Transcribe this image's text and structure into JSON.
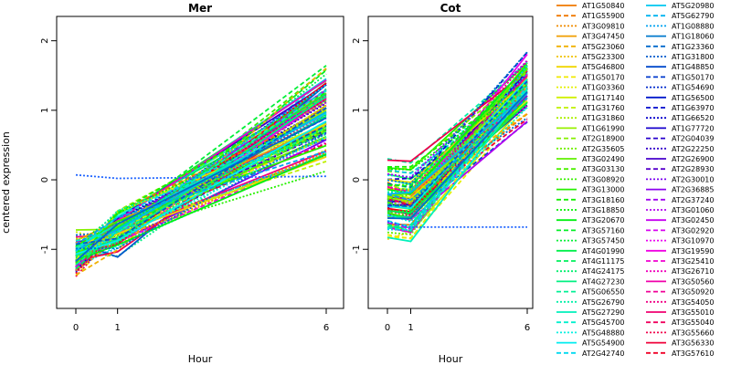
{
  "chart_data": {
    "type": "line",
    "ylabel": "centered expression",
    "xlabel": "Hour",
    "x": [
      0,
      1,
      6
    ],
    "xticks": [
      "0",
      "1",
      "6"
    ],
    "yticks": [
      -1,
      0,
      1,
      2
    ],
    "ylim": [
      -1.85,
      2.35
    ],
    "grid": false,
    "legend_placement": "right",
    "panels": [
      {
        "name": "Mer",
        "title": "Mer",
        "note": "≈100 gene profiles; most rise from ≈-1.1 at 0 h to ≈0.9 at 6 h; one flat dotted blue profile near 0"
      },
      {
        "name": "Cot",
        "title": "Cot",
        "note": "profiles spread -0.9 to 0.8 at 0-1 h then rise steeply to ≈1.4 at 6 h; one flat dotted blue profile near -0.7"
      }
    ],
    "legend": [
      "AT1G50840",
      "AT1G55900",
      "AT3G09810",
      "AT3G47450",
      "AT5G23060",
      "AT5G23300",
      "AT5G46800",
      "AT1G50170",
      "AT1G03360",
      "AT1G17140",
      "AT1G31760",
      "AT1G31860",
      "AT1G61990",
      "AT2G18900",
      "AT2G35605",
      "AT3G02490",
      "AT3G03130",
      "AT3G08920",
      "AT3G13000",
      "AT3G18160",
      "AT3G18850",
      "AT3G20670",
      "AT3G57160",
      "AT3G57450",
      "AT4G01990",
      "AT4G11175",
      "AT4G24175",
      "AT4G27230",
      "AT5G06550",
      "AT5G26790",
      "AT5G27290",
      "AT5G45700",
      "AT5G48880",
      "AT5G54900",
      "AT2G42740",
      "AT5G20980",
      "AT5G62790",
      "AT1G08880",
      "AT1G18060",
      "AT1G23360",
      "AT1G31800",
      "AT1G48850",
      "AT1G50170",
      "AT1G54690",
      "AT1G56500",
      "AT1G63970",
      "AT1G66520",
      "AT1G77720",
      "AT2G04039",
      "AT2G22250",
      "AT2G26900",
      "AT2G28930",
      "AT2G30010",
      "AT2G36885",
      "AT2G37240",
      "AT3G01060",
      "AT3G02450",
      "AT3G02920",
      "AT3G10970",
      "AT3G19590",
      "AT3G25410",
      "AT3G26710",
      "AT3G50560",
      "AT3G50920",
      "AT3G54050",
      "AT3G55010",
      "AT3G55040",
      "AT3G55660",
      "AT3G56330",
      "AT3G57610"
    ]
  }
}
